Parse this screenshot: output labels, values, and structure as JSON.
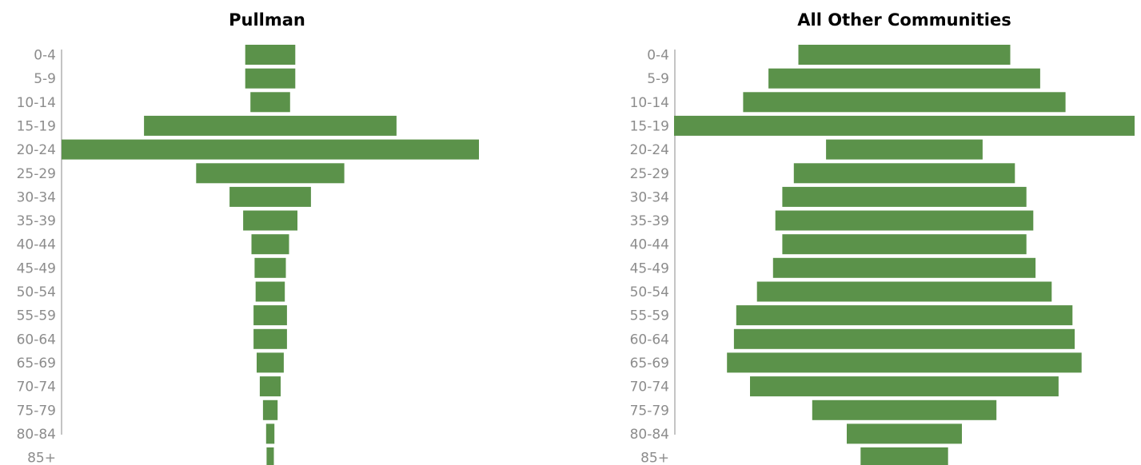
{
  "colors": {
    "bar": "#5b924a",
    "tick_text": "#8c8c8c",
    "axis": "#b0b0b0",
    "title": "#000000"
  },
  "chart_data": [
    {
      "type": "bar",
      "orientation": "horizontal",
      "layout": "centered-pyramid",
      "title": "Pullman",
      "categories": [
        "0-4",
        "5-9",
        "10-14",
        "15-19",
        "20-24",
        "25-29",
        "30-34",
        "35-39",
        "40-44",
        "45-49",
        "50-54",
        "55-59",
        "60-64",
        "65-69",
        "70-74",
        "75-79",
        "80-84",
        "85+"
      ],
      "values": [
        2.4,
        2.4,
        1.9,
        12.1,
        20.0,
        7.1,
        3.9,
        2.6,
        1.8,
        1.5,
        1.4,
        1.6,
        1.6,
        1.3,
        1.0,
        0.7,
        0.4,
        0.35
      ],
      "grid": false,
      "legend": "none"
    },
    {
      "type": "bar",
      "orientation": "horizontal",
      "layout": "centered-pyramid",
      "title": "All Other Communities",
      "categories": [
        "0-4",
        "5-9",
        "10-14",
        "15-19",
        "20-24",
        "25-29",
        "30-34",
        "35-39",
        "40-44",
        "45-49",
        "50-54",
        "55-59",
        "60-64",
        "65-69",
        "70-74",
        "75-79",
        "80-84",
        "85+"
      ],
      "values": [
        4.6,
        5.9,
        7.0,
        10.0,
        3.4,
        4.8,
        5.3,
        5.6,
        5.3,
        5.7,
        6.4,
        7.3,
        7.4,
        7.7,
        6.7,
        4.0,
        2.5,
        1.9
      ],
      "grid": false,
      "legend": "none"
    }
  ]
}
